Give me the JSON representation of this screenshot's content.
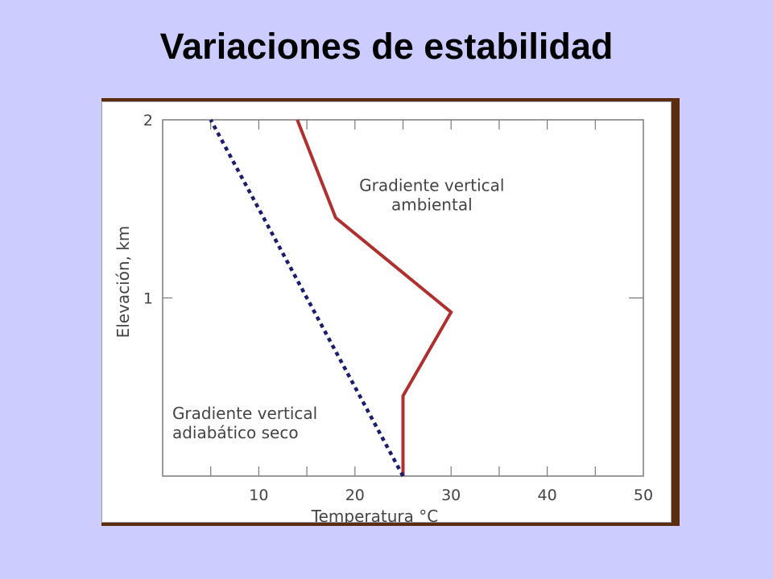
{
  "slide": {
    "title": "Variaciones de estabilidad"
  },
  "chart_data": {
    "type": "line",
    "title": "",
    "xlabel": "Temperatura °C",
    "ylabel": "Elevación, km",
    "xlim": [
      0,
      50
    ],
    "ylim": [
      0,
      2
    ],
    "xticks": [
      0,
      5,
      10,
      15,
      20,
      25,
      30,
      35,
      40,
      45,
      50
    ],
    "xtick_labels": [
      10,
      20,
      30,
      40,
      50
    ],
    "yticks": [
      0,
      1,
      2
    ],
    "ytick_labels": [
      1,
      2
    ],
    "grid": false,
    "series": [
      {
        "name": "Gradiente vertical ambiental",
        "style": "solid",
        "color": "#b03030",
        "x": [
          25,
          25,
          30,
          18,
          14
        ],
        "y": [
          0,
          0.45,
          0.92,
          1.45,
          2
        ]
      },
      {
        "name": "Gradiente vertical adiabático seco",
        "style": "dotted",
        "color": "#1c1c6e",
        "x": [
          25,
          5
        ],
        "y": [
          0,
          2
        ]
      }
    ],
    "annotations": [
      {
        "lines": [
          "Gradiente vertical",
          "ambiental"
        ],
        "x": 28,
        "y": 1.6,
        "anchor": "middle"
      },
      {
        "lines": [
          "Gradiente vertical",
          "adiabático seco"
        ],
        "x": 1,
        "y": 0.32,
        "anchor": "start"
      }
    ]
  }
}
